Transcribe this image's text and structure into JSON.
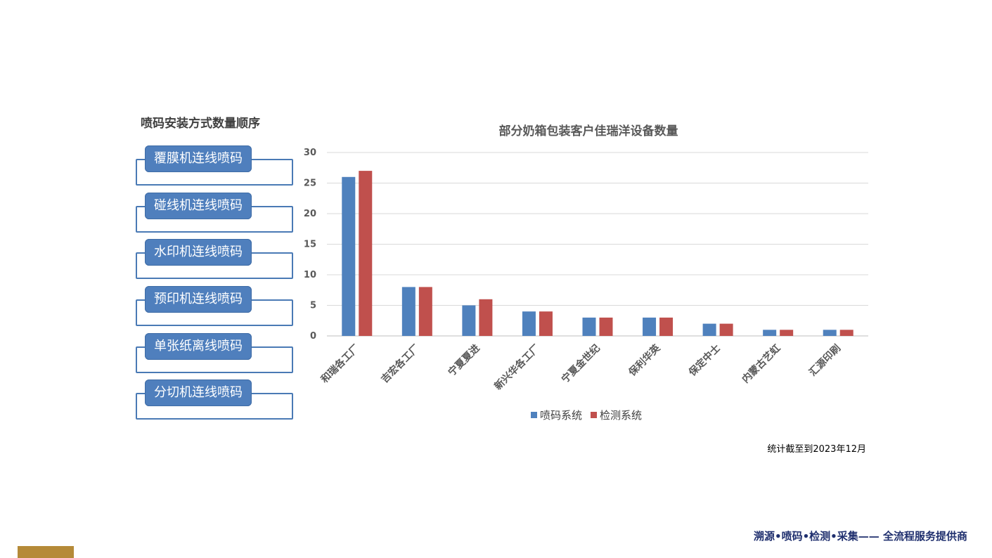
{
  "left_panel": {
    "title": "喷码安装方式数量顺序",
    "methods": [
      "覆膜机连线喷码",
      "碰线机连线喷码",
      "水印机连线喷码",
      "预印机连线喷码",
      "单张纸离线喷码",
      "分切机连线喷码"
    ]
  },
  "chart_data": {
    "type": "bar",
    "title": "部分奶箱包装客户佳瑞洋设备数量",
    "categories": [
      "和瑞各工厂",
      "吉宏各工厂",
      "宁夏夏进",
      "新兴华各工厂",
      "宁夏金世纪",
      "保利华英",
      "保定中士",
      "内蒙古艺虹",
      "汇源印刷"
    ],
    "series": [
      {
        "name": "喷码系统",
        "color": "#4f81bd",
        "values": [
          26,
          8,
          5,
          4,
          3,
          3,
          2,
          1,
          1
        ]
      },
      {
        "name": "检测系统",
        "color": "#c0504d",
        "values": [
          27,
          8,
          6,
          4,
          3,
          3,
          2,
          1,
          1
        ]
      }
    ],
    "ylim": [
      0,
      30
    ],
    "yticks": [
      0,
      5,
      10,
      15,
      20,
      25,
      30
    ],
    "grid": true,
    "legend": "bottom"
  },
  "note": "统计截至到2023年12月",
  "footer": {
    "slogan": "溯源•喷码•检测•采集—— 全流程服务提供商",
    "accent_color": "#b58a38"
  }
}
